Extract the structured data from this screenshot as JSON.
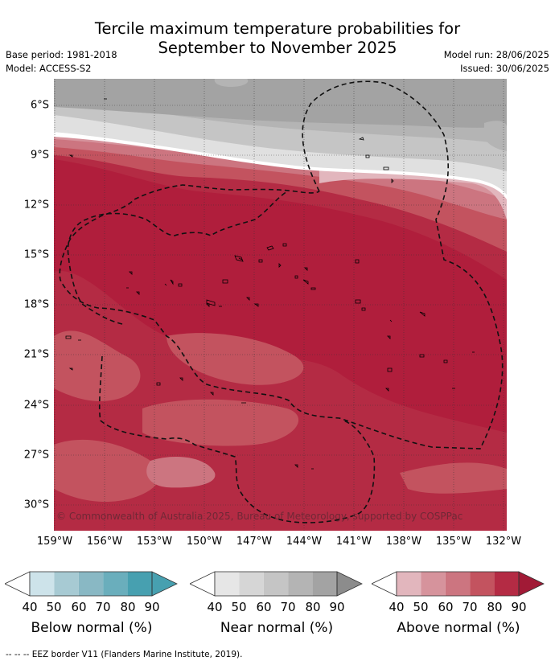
{
  "title_line1": "Tercile maximum temperature probabilities for",
  "title_line2": "September to November 2025",
  "base_period": "Base period: 1981-2018",
  "model": "Model: ACCESS-S2",
  "model_run": "Model run: 28/06/2025",
  "issued": "Issued: 30/06/2025",
  "copyright": "© Commonwealth of Australia 2025, Bureau of Meteorology, supported by COSPPac",
  "lat_labels": [
    "6°S",
    "9°S",
    "12°S",
    "15°S",
    "18°S",
    "21°S",
    "24°S",
    "27°S",
    "30°S"
  ],
  "lon_labels": [
    "159°W",
    "156°W",
    "153°W",
    "150°W",
    "147°W",
    "144°W",
    "141°W",
    "138°W",
    "135°W",
    "132°W"
  ],
  "legends": [
    {
      "title": "Below normal (%)",
      "ticks": [
        "40",
        "50",
        "60",
        "70",
        "80",
        "90"
      ],
      "colors": [
        "#ffffff",
        "#cde3ea",
        "#a7cad3",
        "#89b8c4",
        "#6aaebc",
        "#47a0b0"
      ]
    },
    {
      "title": "Near normal (%)",
      "ticks": [
        "40",
        "50",
        "60",
        "70",
        "80",
        "90"
      ],
      "colors": [
        "#ffffff",
        "#e6e6e6",
        "#d6d6d6",
        "#c5c5c5",
        "#b4b4b4",
        "#a3a3a3"
      ]
    },
    {
      "title": "Above normal (%)",
      "ticks": [
        "40",
        "50",
        "60",
        "70",
        "80",
        "90"
      ],
      "colors": [
        "#ffffff",
        "#e2b6bd",
        "#d6939c",
        "#cc7580",
        "#c3535f",
        "#b42b44"
      ]
    }
  ],
  "footer": "-- -- -- EEZ border V11 (Flanders Marine Institute, 2019).",
  "map_colors": {
    "near_90": "#a3a3a3",
    "near_80": "#b4b4b4",
    "near_70": "#c5c5c5",
    "near_60": "#d6d6d6",
    "above_50": "#e2b6bd",
    "above_60": "#d6939c",
    "above_70": "#cc7580",
    "above_80": "#c3535f",
    "above_90": "#b42b44",
    "above_100": "#b01e3c"
  }
}
